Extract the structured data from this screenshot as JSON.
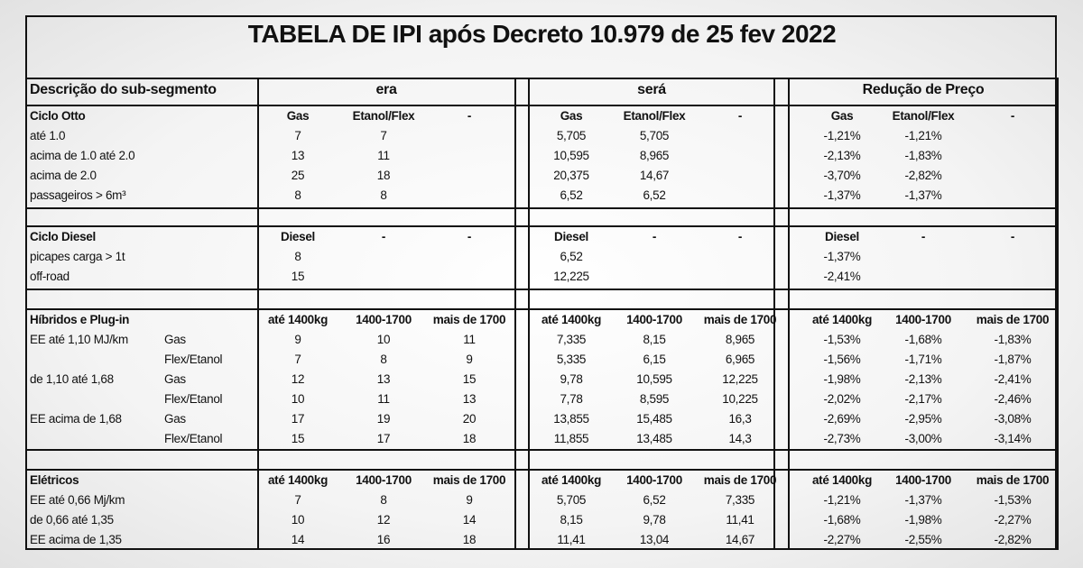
{
  "title": "TABELA DE IPI após Decreto 10.979 de 25 fev 2022",
  "header": {
    "description": "Descrição do sub-segmento",
    "era": "era",
    "sera": "será",
    "reducao": "Redução de Preço"
  },
  "sections": [
    {
      "title": "Ciclo Otto",
      "headers": [
        "Gas",
        "Etanol/Flex",
        "-"
      ],
      "rows": [
        {
          "label": "até 1.0",
          "sub": "",
          "era": [
            "7",
            "7",
            ""
          ],
          "sera": [
            "5,705",
            "5,705",
            ""
          ],
          "reducao": [
            "-1,21%",
            "-1,21%",
            ""
          ]
        },
        {
          "label": "acima de 1.0 até 2.0",
          "sub": "",
          "era": [
            "13",
            "11",
            ""
          ],
          "sera": [
            "10,595",
            "8,965",
            ""
          ],
          "reducao": [
            "-2,13%",
            "-1,83%",
            ""
          ]
        },
        {
          "label": "acima de 2.0",
          "sub": "",
          "era": [
            "25",
            "18",
            ""
          ],
          "sera": [
            "20,375",
            "14,67",
            ""
          ],
          "reducao": [
            "-3,70%",
            "-2,82%",
            ""
          ]
        },
        {
          "label": "passageiros > 6m³",
          "sub": "",
          "era": [
            "8",
            "8",
            ""
          ],
          "sera": [
            "6,52",
            "6,52",
            ""
          ],
          "reducao": [
            "-1,37%",
            "-1,37%",
            ""
          ]
        }
      ]
    },
    {
      "title": "Ciclo Diesel",
      "headers": [
        "Diesel",
        "-",
        "-"
      ],
      "rows": [
        {
          "label": "picapes carga > 1t",
          "sub": "",
          "era": [
            "8",
            "",
            ""
          ],
          "sera": [
            "6,52",
            "",
            ""
          ],
          "reducao": [
            "-1,37%",
            "",
            ""
          ]
        },
        {
          "label": "off-road",
          "sub": "",
          "era": [
            "15",
            "",
            ""
          ],
          "sera": [
            "12,225",
            "",
            ""
          ],
          "reducao": [
            "-2,41%",
            "",
            ""
          ]
        }
      ]
    },
    {
      "title": "Híbridos e Plug-in",
      "headers": [
        "até 1400kg",
        "1400-1700",
        "mais de 1700"
      ],
      "rows": [
        {
          "label": "EE até 1,10 MJ/km",
          "sub": "Gas",
          "era": [
            "9",
            "10",
            "11"
          ],
          "sera": [
            "7,335",
            "8,15",
            "8,965"
          ],
          "reducao": [
            "-1,53%",
            "-1,68%",
            "-1,83%"
          ]
        },
        {
          "label": "",
          "sub": "Flex/Etanol",
          "era": [
            "7",
            "8",
            "9"
          ],
          "sera": [
            "5,335",
            "6,15",
            "6,965"
          ],
          "reducao": [
            "-1,56%",
            "-1,71%",
            "-1,87%"
          ]
        },
        {
          "label": "de 1,10 até 1,68",
          "sub": "Gas",
          "era": [
            "12",
            "13",
            "15"
          ],
          "sera": [
            "9,78",
            "10,595",
            "12,225"
          ],
          "reducao": [
            "-1,98%",
            "-2,13%",
            "-2,41%"
          ]
        },
        {
          "label": "",
          "sub": "Flex/Etanol",
          "era": [
            "10",
            "11",
            "13"
          ],
          "sera": [
            "7,78",
            "8,595",
            "10,225"
          ],
          "reducao": [
            "-2,02%",
            "-2,17%",
            "-2,46%"
          ]
        },
        {
          "label": "EE acima de 1,68",
          "sub": "Gas",
          "era": [
            "17",
            "19",
            "20"
          ],
          "sera": [
            "13,855",
            "15,485",
            "16,3"
          ],
          "reducao": [
            "-2,69%",
            "-2,95%",
            "-3,08%"
          ]
        },
        {
          "label": "",
          "sub": "Flex/Etanol",
          "era": [
            "15",
            "17",
            "18"
          ],
          "sera": [
            "11,855",
            "13,485",
            "14,3"
          ],
          "reducao": [
            "-2,73%",
            "-3,00%",
            "-3,14%"
          ]
        }
      ]
    },
    {
      "title": "Elétricos",
      "headers": [
        "até 1400kg",
        "1400-1700",
        "mais de 1700"
      ],
      "rows": [
        {
          "label": "EE até 0,66 Mj/km",
          "sub": "",
          "era": [
            "7",
            "8",
            "9"
          ],
          "sera": [
            "5,705",
            "6,52",
            "7,335"
          ],
          "reducao": [
            "-1,21%",
            "-1,37%",
            "-1,53%"
          ]
        },
        {
          "label": "de 0,66 até 1,35",
          "sub": "",
          "era": [
            "10",
            "12",
            "14"
          ],
          "sera": [
            "8,15",
            "9,78",
            "11,41"
          ],
          "reducao": [
            "-1,68%",
            "-1,98%",
            "-2,27%"
          ]
        },
        {
          "label": "EE acima de 1,35",
          "sub": "",
          "era": [
            "14",
            "16",
            "18"
          ],
          "sera": [
            "11,41",
            "13,04",
            "14,67"
          ],
          "reducao": [
            "-2,27%",
            "-2,55%",
            "-2,82%"
          ]
        }
      ]
    }
  ]
}
